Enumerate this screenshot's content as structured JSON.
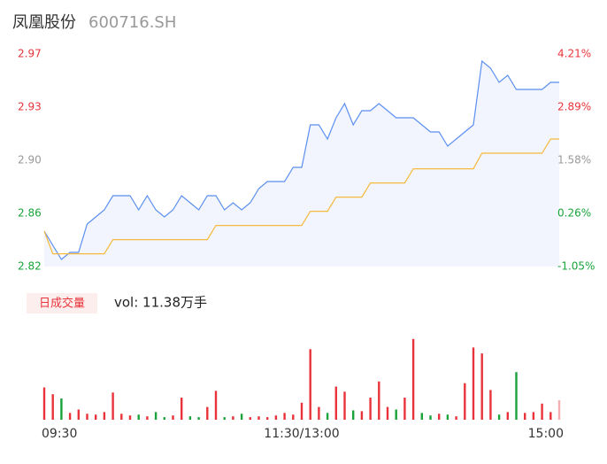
{
  "header": {
    "title": "凤凰股份",
    "code": "600716.SH"
  },
  "chart_data": [
    {
      "type": "line",
      "series": [
        {
          "color": "#5b8ff0",
          "values": [
            2.845,
            2.835,
            2.825,
            2.83,
            2.83,
            2.85,
            2.855,
            2.86,
            2.87,
            2.87,
            2.87,
            2.86,
            2.87,
            2.86,
            2.855,
            2.86,
            2.87,
            2.865,
            2.86,
            2.87,
            2.87,
            2.86,
            2.865,
            2.86,
            2.865,
            2.875,
            2.88,
            2.88,
            2.88,
            2.89,
            2.89,
            2.92,
            2.92,
            2.91,
            2.925,
            2.935,
            2.92,
            2.93,
            2.93,
            2.935,
            2.93,
            2.925,
            2.925,
            2.925,
            2.92,
            2.915,
            2.915,
            2.905,
            2.91,
            2.915,
            2.92,
            2.965,
            2.96,
            2.95,
            2.955,
            2.945,
            2.945,
            2.945,
            2.945,
            2.95,
            2.95
          ],
          "fill": "#f2f5fd"
        },
        {
          "color": "#f5b93e",
          "values": [
            2.845,
            2.829,
            2.829,
            2.829,
            2.829,
            2.829,
            2.829,
            2.829,
            2.839,
            2.839,
            2.839,
            2.839,
            2.839,
            2.839,
            2.839,
            2.839,
            2.839,
            2.839,
            2.839,
            2.839,
            2.849,
            2.849,
            2.849,
            2.849,
            2.849,
            2.849,
            2.849,
            2.849,
            2.849,
            2.849,
            2.849,
            2.859,
            2.859,
            2.859,
            2.869,
            2.869,
            2.869,
            2.869,
            2.879,
            2.879,
            2.879,
            2.879,
            2.879,
            2.889,
            2.889,
            2.889,
            2.889,
            2.889,
            2.889,
            2.889,
            2.889,
            2.9,
            2.9,
            2.9,
            2.9,
            2.9,
            2.9,
            2.9,
            2.9,
            2.91,
            2.91
          ]
        }
      ],
      "ylim": [
        2.82,
        2.97
      ],
      "yticks": [
        {
          "value": 2.97,
          "label": "2.97"
        },
        {
          "value": 2.9325,
          "label": "2.93"
        },
        {
          "value": 2.895,
          "label": "2.90"
        },
        {
          "value": 2.8575,
          "label": "2.86"
        },
        {
          "value": 2.82,
          "label": "2.82"
        }
      ],
      "ytick_colors": [
        "#e8333a",
        "#e8333a",
        "#999999",
        "#1aa33a",
        "#1aa33a"
      ],
      "y2lim": [
        -1.05,
        4.21
      ],
      "y2ticks": [
        {
          "value": 4.21,
          "label": "4.21%"
        },
        {
          "value": 2.89,
          "label": "2.89%"
        },
        {
          "value": 1.58,
          "label": "1.58%"
        },
        {
          "value": 0.26,
          "label": "0.26%"
        },
        {
          "value": -1.05,
          "label": "-1.05%"
        }
      ],
      "y2tick_colors": [
        "#e8333a",
        "#e8333a",
        "#999999",
        "#1aa33a",
        "#1aa33a"
      ]
    },
    {
      "type": "bar",
      "legend_label": "日成交量",
      "summary": "vol: 11.38万手",
      "categories": [
        "09:30",
        null,
        null,
        null,
        null,
        null,
        null,
        null,
        null,
        null,
        null,
        null,
        null,
        null,
        null,
        null,
        null,
        null,
        null,
        null,
        null,
        null,
        null,
        null,
        null,
        null,
        null,
        null,
        null,
        null,
        "11:30/13:00",
        null,
        null,
        null,
        null,
        null,
        null,
        null,
        null,
        null,
        null,
        null,
        null,
        null,
        null,
        null,
        null,
        null,
        null,
        null,
        null,
        null,
        null,
        null,
        null,
        null,
        null,
        null,
        null,
        null,
        "15:00"
      ],
      "values": [
        3800,
        3000,
        2500,
        800,
        1200,
        700,
        600,
        900,
        3200,
        700,
        500,
        600,
        400,
        900,
        300,
        500,
        2600,
        400,
        300,
        1500,
        3400,
        300,
        400,
        700,
        300,
        400,
        300,
        500,
        800,
        600,
        2000,
        8300,
        1500,
        800,
        3900,
        3300,
        1100,
        1000,
        2600,
        4500,
        1500,
        1200,
        2600,
        9500,
        800,
        500,
        700,
        600,
        400,
        4300,
        8500,
        7800,
        3500,
        600,
        900,
        5600,
        800,
        900,
        1900,
        900,
        2300
      ],
      "colors": [
        "#e8333a",
        "#e8333a",
        "#1aa33a",
        "#e8333a",
        "#e8333a",
        "#e8333a",
        "#e8333a",
        "#e8333a",
        "#e8333a",
        "#e8333a",
        "#e8333a",
        "#1aa33a",
        "#e8333a",
        "#1aa33a",
        "#1aa33a",
        "#e8333a",
        "#e8333a",
        "#1aa33a",
        "#1aa33a",
        "#e8333a",
        "#e8333a",
        "#1aa33a",
        "#e8333a",
        "#1aa33a",
        "#e8333a",
        "#e8333a",
        "#e8333a",
        "#e8333a",
        "#e8333a",
        "#e8333a",
        "#e8333a",
        "#e8333a",
        "#e8333a",
        "#1aa33a",
        "#e8333a",
        "#e8333a",
        "#1aa33a",
        "#e8333a",
        "#e8333a",
        "#e8333a",
        "#e8333a",
        "#1aa33a",
        "#e8333a",
        "#e8333a",
        "#1aa33a",
        "#1aa33a",
        "#e8333a",
        "#1aa33a",
        "#e8333a",
        "#e8333a",
        "#e8333a",
        "#e8333a",
        "#e8333a",
        "#1aa33a",
        "#e8333a",
        "#1aa33a",
        "#e8333a",
        "#e8333a",
        "#e8333a",
        "#e8333a",
        "#f4b0b2"
      ],
      "ylim": [
        0,
        10000
      ]
    }
  ]
}
